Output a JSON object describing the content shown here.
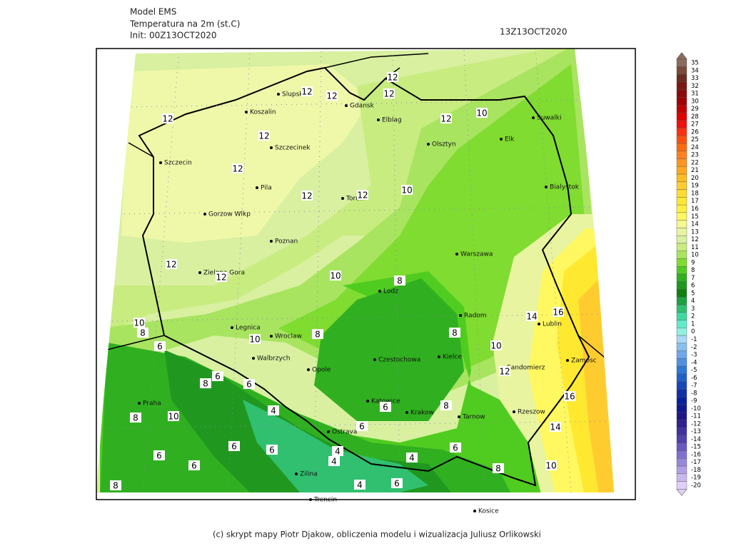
{
  "header": {
    "title_lines": [
      "Model EMS",
      "Temperatura na 2m (st.C)",
      "Init: 00Z13OCT2020"
    ],
    "valid_time": "13Z13OCT2020"
  },
  "cities": [
    "Slupsk",
    "Koszalin",
    "Gdansk",
    "Elblag",
    "Suwalki",
    "Olsztyn",
    "Elk",
    "Szczecinek",
    "Szczecin",
    "Pila",
    "Torun",
    "Bialystok",
    "Gorzow Wlkp",
    "Poznan",
    "Warszawa",
    "Zielona Gora",
    "Lodz",
    "Radom",
    "Lublin",
    "Legnica",
    "Wroclaw",
    "Walbrzych",
    "Opole",
    "Czestochowa",
    "Kielce",
    "Zamosc",
    "Sandomierz",
    "Praha",
    "Katowice",
    "Krakow",
    "Tarnow",
    "Rzeszow",
    "Ostrava",
    "Zilina",
    "Trencin",
    "Kosice"
  ],
  "contour_labels": [
    12,
    12,
    12,
    12,
    12,
    12,
    12,
    12,
    12,
    12,
    12,
    12,
    10,
    10,
    10,
    10,
    10,
    10,
    10,
    10,
    8,
    8,
    8,
    8,
    8,
    8,
    8,
    8,
    8,
    16,
    16,
    14,
    14,
    6,
    6,
    6,
    6,
    6,
    6,
    6,
    6,
    6,
    6,
    6,
    4,
    4,
    4,
    4,
    4,
    12
  ],
  "colorbar": {
    "levels": [
      35,
      34,
      33,
      32,
      31,
      30,
      29,
      28,
      27,
      26,
      25,
      24,
      23,
      22,
      21,
      20,
      19,
      18,
      17,
      16,
      15,
      14,
      13,
      12,
      11,
      10,
      9,
      8,
      7,
      6,
      5,
      4,
      3,
      2,
      1,
      0,
      -1,
      -2,
      -3,
      -4,
      -5,
      -6,
      -7,
      -8,
      -9,
      -10,
      -11,
      -12,
      -13,
      -14,
      -15,
      -16,
      -17,
      -18,
      -19,
      -20
    ],
    "colors": [
      "#8b6b5e",
      "#7a4a3a",
      "#6b2c20",
      "#7a1a12",
      "#8b0a0a",
      "#a00000",
      "#c00000",
      "#e00000",
      "#f01010",
      "#ff3010",
      "#ff5010",
      "#ff6a10",
      "#ff8020",
      "#ff9420",
      "#ffa820",
      "#ffbc20",
      "#ffcc30",
      "#ffdc30",
      "#ffe830",
      "#fff040",
      "#fff860",
      "#f6f890",
      "#e8f4a0",
      "#d8f0a0",
      "#c8ec80",
      "#a8e460",
      "#80dc30",
      "#50cc20",
      "#30b020",
      "#209820",
      "#108010",
      "#20a040",
      "#30c070",
      "#40d8a0",
      "#60ecc8",
      "#90f0e0",
      "#a8d8f8",
      "#88c0f0",
      "#70a8e8",
      "#5090e0",
      "#3078d8",
      "#2060c8",
      "#1848b8",
      "#1030a8",
      "#0820a0",
      "#101890",
      "#201888",
      "#302090",
      "#4030a0",
      "#5040b0",
      "#6858c0",
      "#8070d0",
      "#9888dc",
      "#b0a0e8",
      "#c8b8f0",
      "#e0d0f8"
    ]
  },
  "footer": "(c) skrypt mapy Piotr Djakow, obliczenia modelu i wizualizacja Juliusz Orlikowski"
}
